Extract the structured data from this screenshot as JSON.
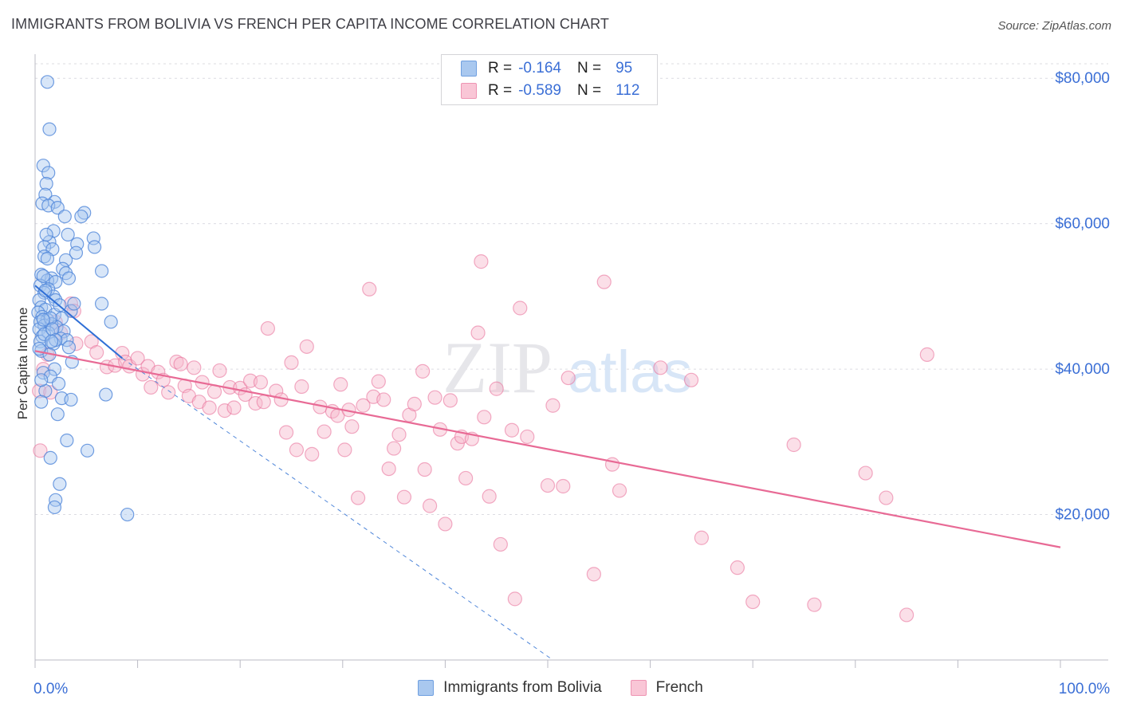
{
  "header": {
    "title": "IMMIGRANTS FROM BOLIVIA VS FRENCH PER CAPITA INCOME CORRELATION CHART",
    "source": "Source: ZipAtlas.com"
  },
  "legend": {
    "rows": [
      {
        "r_label": "R =",
        "r_value": "-0.164",
        "n_label": "N =",
        "n_value": "95",
        "color": "#7aa9e6"
      },
      {
        "r_label": "R =",
        "r_value": "-0.589",
        "n_label": "N =",
        "n_value": "112",
        "color": "#f29bb8"
      }
    ]
  },
  "watermark": {
    "zip": "ZIP",
    "atlas": "atlas"
  },
  "chart_data": {
    "type": "scatter",
    "title": "IMMIGRANTS FROM BOLIVIA VS FRENCH PER CAPITA INCOME CORRELATION CHART",
    "ylabel": "Per Capita Income",
    "xlim": [
      0,
      100
    ],
    "ylim": [
      0,
      82000
    ],
    "x_tick_labels": [
      {
        "x": 0,
        "label": "0.0%"
      },
      {
        "x": 100,
        "label": "100.0%"
      }
    ],
    "y_ticks": [
      {
        "y": 20000,
        "label": "$20,000"
      },
      {
        "y": 40000,
        "label": "$40,000"
      },
      {
        "y": 60000,
        "label": "$60,000"
      },
      {
        "y": 80000,
        "label": "$80,000"
      }
    ],
    "grid": "horizontal dashed",
    "legend_position": "top-center",
    "series": [
      {
        "name": "Immigrants from Bolivia",
        "color": "#4f86d9",
        "fill": "#a9c8ef",
        "trend": {
          "x": [
            0,
            8.5
          ],
          "y": [
            51500,
            41500
          ]
        },
        "trend_extension": {
          "x": [
            8.5,
            50.5
          ],
          "y": [
            41500,
            0
          ]
        },
        "points": [
          [
            1.2,
            79500
          ],
          [
            1.4,
            73000
          ],
          [
            0.8,
            68000
          ],
          [
            1.3,
            67000
          ],
          [
            1.1,
            65500
          ],
          [
            1.0,
            64000
          ],
          [
            1.9,
            63000
          ],
          [
            0.7,
            62800
          ],
          [
            1.3,
            62500
          ],
          [
            2.2,
            62200
          ],
          [
            4.8,
            61500
          ],
          [
            4.5,
            61000
          ],
          [
            1.8,
            59000
          ],
          [
            3.2,
            58500
          ],
          [
            5.7,
            58000
          ],
          [
            1.4,
            57500
          ],
          [
            4.1,
            57200
          ],
          [
            0.9,
            56800
          ],
          [
            1.7,
            56500
          ],
          [
            5.8,
            56800
          ],
          [
            0.9,
            55500
          ],
          [
            3.0,
            55000
          ],
          [
            6.5,
            53500
          ],
          [
            0.6,
            53000
          ],
          [
            2.7,
            53800
          ],
          [
            1.6,
            52500
          ],
          [
            3.0,
            53200
          ],
          [
            1.2,
            52200
          ],
          [
            2.0,
            52000
          ],
          [
            0.5,
            51500
          ],
          [
            1.3,
            51000
          ],
          [
            0.9,
            50500
          ],
          [
            1.8,
            50000
          ],
          [
            0.4,
            49500
          ],
          [
            6.5,
            49000
          ],
          [
            0.6,
            48500
          ],
          [
            1.0,
            48200
          ],
          [
            3.5,
            48000
          ],
          [
            0.3,
            47800
          ],
          [
            1.9,
            47500
          ],
          [
            0.7,
            47200
          ],
          [
            2.6,
            47000
          ],
          [
            1.2,
            46800
          ],
          [
            0.5,
            46500
          ],
          [
            7.4,
            46500
          ],
          [
            1.6,
            46200
          ],
          [
            0.9,
            46000
          ],
          [
            2.1,
            45800
          ],
          [
            0.4,
            45500
          ],
          [
            2.8,
            45200
          ],
          [
            1.3,
            45000
          ],
          [
            0.7,
            44500
          ],
          [
            2.5,
            44200
          ],
          [
            3.1,
            44000
          ],
          [
            0.5,
            43800
          ],
          [
            1.8,
            43500
          ],
          [
            3.3,
            43000
          ],
          [
            0.6,
            42500
          ],
          [
            1.4,
            42000
          ],
          [
            3.6,
            41000
          ],
          [
            1.9,
            40000
          ],
          [
            0.8,
            39500
          ],
          [
            1.5,
            39000
          ],
          [
            2.3,
            38000
          ],
          [
            1.0,
            37000
          ],
          [
            2.6,
            36000
          ],
          [
            3.5,
            35800
          ],
          [
            6.9,
            36500
          ],
          [
            0.6,
            35500
          ],
          [
            2.2,
            33800
          ],
          [
            3.1,
            30200
          ],
          [
            5.1,
            28800
          ],
          [
            1.5,
            27800
          ],
          [
            2.4,
            24200
          ],
          [
            2.0,
            22000
          ],
          [
            1.9,
            21000
          ],
          [
            9.0,
            20000
          ],
          [
            4.0,
            56000
          ],
          [
            0.9,
            44800
          ],
          [
            1.5,
            47000
          ],
          [
            2.0,
            49500
          ],
          [
            3.8,
            49000
          ],
          [
            1.1,
            58500
          ],
          [
            2.9,
            61000
          ],
          [
            0.8,
            52800
          ],
          [
            1.7,
            45500
          ],
          [
            0.4,
            42800
          ],
          [
            2.4,
            48800
          ],
          [
            3.3,
            52500
          ],
          [
            1.2,
            55200
          ],
          [
            0.6,
            38500
          ],
          [
            2.0,
            44000
          ],
          [
            1.0,
            50800
          ],
          [
            1.6,
            43800
          ],
          [
            0.8,
            46800
          ]
        ]
      },
      {
        "name": "French",
        "color": "#e86a95",
        "fill": "#f6b9cd",
        "trend": {
          "x": [
            0,
            100
          ],
          "y": [
            42500,
            15500
          ]
        },
        "points": [
          [
            0.5,
            28800
          ],
          [
            0.4,
            37000
          ],
          [
            1.5,
            36800
          ],
          [
            1.2,
            42000
          ],
          [
            2.0,
            46500
          ],
          [
            3.5,
            49000
          ],
          [
            3.8,
            48000
          ],
          [
            4.0,
            43500
          ],
          [
            5.5,
            43800
          ],
          [
            6.0,
            42300
          ],
          [
            7.0,
            40300
          ],
          [
            7.8,
            40500
          ],
          [
            8.5,
            42200
          ],
          [
            8.8,
            41000
          ],
          [
            9.2,
            40400
          ],
          [
            10.0,
            41500
          ],
          [
            10.5,
            39300
          ],
          [
            11.0,
            40400
          ],
          [
            11.3,
            37500
          ],
          [
            12.0,
            39600
          ],
          [
            12.5,
            38500
          ],
          [
            13.0,
            36800
          ],
          [
            13.8,
            41000
          ],
          [
            14.2,
            40700
          ],
          [
            14.6,
            37700
          ],
          [
            15.0,
            36300
          ],
          [
            15.5,
            40200
          ],
          [
            16.0,
            35500
          ],
          [
            16.3,
            38200
          ],
          [
            17.0,
            34700
          ],
          [
            17.5,
            36900
          ],
          [
            18.0,
            39800
          ],
          [
            18.5,
            34300
          ],
          [
            19.0,
            37500
          ],
          [
            19.4,
            34700
          ],
          [
            20.0,
            37400
          ],
          [
            20.5,
            36500
          ],
          [
            21.0,
            38400
          ],
          [
            21.5,
            35300
          ],
          [
            22.0,
            38200
          ],
          [
            22.3,
            35500
          ],
          [
            22.7,
            45600
          ],
          [
            23.5,
            37000
          ],
          [
            24.0,
            35800
          ],
          [
            24.5,
            31300
          ],
          [
            25.0,
            40900
          ],
          [
            25.5,
            28900
          ],
          [
            26.0,
            37600
          ],
          [
            26.5,
            43100
          ],
          [
            27.0,
            28300
          ],
          [
            27.8,
            34800
          ],
          [
            28.2,
            31400
          ],
          [
            29.0,
            34200
          ],
          [
            29.5,
            33600
          ],
          [
            29.8,
            37900
          ],
          [
            30.2,
            28900
          ],
          [
            30.6,
            34400
          ],
          [
            30.9,
            32100
          ],
          [
            31.5,
            22300
          ],
          [
            32.0,
            35000
          ],
          [
            32.6,
            51000
          ],
          [
            33.0,
            36200
          ],
          [
            33.5,
            38300
          ],
          [
            34.0,
            35800
          ],
          [
            34.5,
            26300
          ],
          [
            35.0,
            29100
          ],
          [
            35.5,
            31000
          ],
          [
            36.0,
            22400
          ],
          [
            36.5,
            33700
          ],
          [
            37.0,
            35200
          ],
          [
            37.8,
            39700
          ],
          [
            38.0,
            26200
          ],
          [
            38.5,
            21200
          ],
          [
            39.0,
            36100
          ],
          [
            39.5,
            31700
          ],
          [
            40.0,
            18700
          ],
          [
            40.5,
            35700
          ],
          [
            41.2,
            29800
          ],
          [
            41.6,
            30700
          ],
          [
            42.0,
            25000
          ],
          [
            42.6,
            30400
          ],
          [
            43.2,
            45000
          ],
          [
            43.5,
            54800
          ],
          [
            43.8,
            33400
          ],
          [
            44.3,
            22500
          ],
          [
            45.0,
            37300
          ],
          [
            45.4,
            15900
          ],
          [
            46.5,
            31600
          ],
          [
            46.8,
            8400
          ],
          [
            47.3,
            48400
          ],
          [
            48.0,
            30700
          ],
          [
            50.0,
            24000
          ],
          [
            50.5,
            35000
          ],
          [
            51.5,
            23900
          ],
          [
            52.0,
            38800
          ],
          [
            54.5,
            11800
          ],
          [
            55.5,
            52000
          ],
          [
            56.3,
            26900
          ],
          [
            57.0,
            23300
          ],
          [
            61.0,
            40200
          ],
          [
            64.0,
            38500
          ],
          [
            65.0,
            16800
          ],
          [
            68.5,
            12700
          ],
          [
            70.0,
            8000
          ],
          [
            74.0,
            29600
          ],
          [
            76.0,
            7600
          ],
          [
            81.0,
            25700
          ],
          [
            83.0,
            22300
          ],
          [
            85.0,
            6200
          ],
          [
            87.0,
            42000
          ],
          [
            0.8,
            40000
          ],
          [
            2.5,
            45000
          ]
        ]
      }
    ]
  },
  "bottom_legend": [
    {
      "label": "Immigrants from Bolivia",
      "color": "#7aa9e6"
    },
    {
      "label": "French",
      "color": "#f29bb8"
    }
  ]
}
